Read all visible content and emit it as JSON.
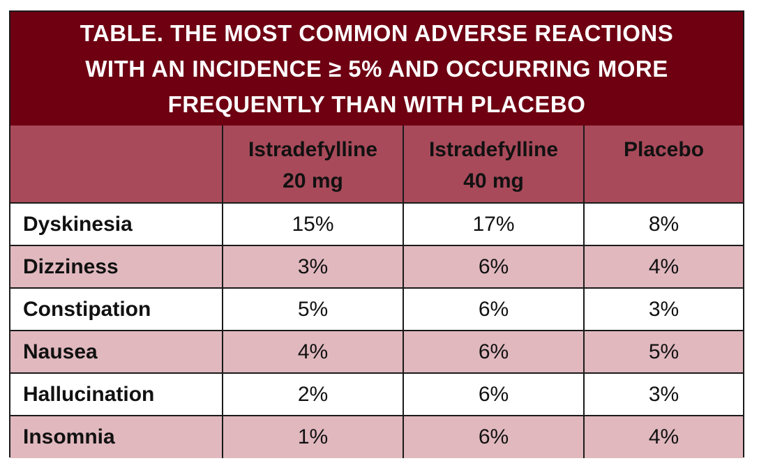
{
  "title": "TABLE. THE MOST COMMON ADVERSE REACTIONS\nWITH AN INCIDENCE ≥ 5% AND OCCURRING MORE\nFREQUENTLY THAN WITH PLACEBO",
  "colors": {
    "title_bg": "#6e0012",
    "header_bg": "#a84a5a",
    "row_alt_bg": "#e0b8be",
    "row_bg": "#ffffff",
    "border": "#1a1a1a"
  },
  "table": {
    "headers": [
      "",
      "Istradefylline\n20 mg",
      "Istradefylline\n40 mg",
      "Placebo"
    ],
    "rows": [
      {
        "label": "Dyskinesia",
        "values": [
          "15%",
          "17%",
          "8%"
        ]
      },
      {
        "label": "Dizziness",
        "values": [
          "3%",
          "6%",
          "4%"
        ]
      },
      {
        "label": "Constipation",
        "values": [
          "5%",
          "6%",
          "3%"
        ]
      },
      {
        "label": "Nausea",
        "values": [
          "4%",
          "6%",
          "5%"
        ]
      },
      {
        "label": "Hallucination",
        "values": [
          "2%",
          "6%",
          "3%"
        ]
      },
      {
        "label": "Insomnia",
        "values": [
          "1%",
          "6%",
          "4%"
        ]
      }
    ]
  }
}
